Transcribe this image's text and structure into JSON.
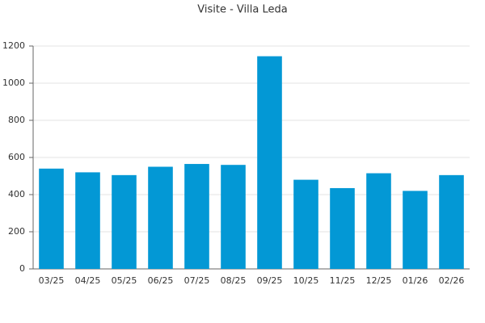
{
  "chart_data": {
    "type": "bar",
    "title": "Visite - Villa Leda",
    "categories": [
      "03/25",
      "04/25",
      "05/25",
      "06/25",
      "07/25",
      "08/25",
      "09/25",
      "10/25",
      "11/25",
      "12/25",
      "01/26",
      "02/26"
    ],
    "values": [
      540,
      520,
      505,
      550,
      565,
      560,
      1145,
      480,
      435,
      515,
      420,
      505
    ],
    "color": "#0398d5",
    "ylim": [
      0,
      1200
    ],
    "yticks": [
      0,
      200,
      400,
      600,
      800,
      1000,
      1200
    ],
    "grid": true
  }
}
